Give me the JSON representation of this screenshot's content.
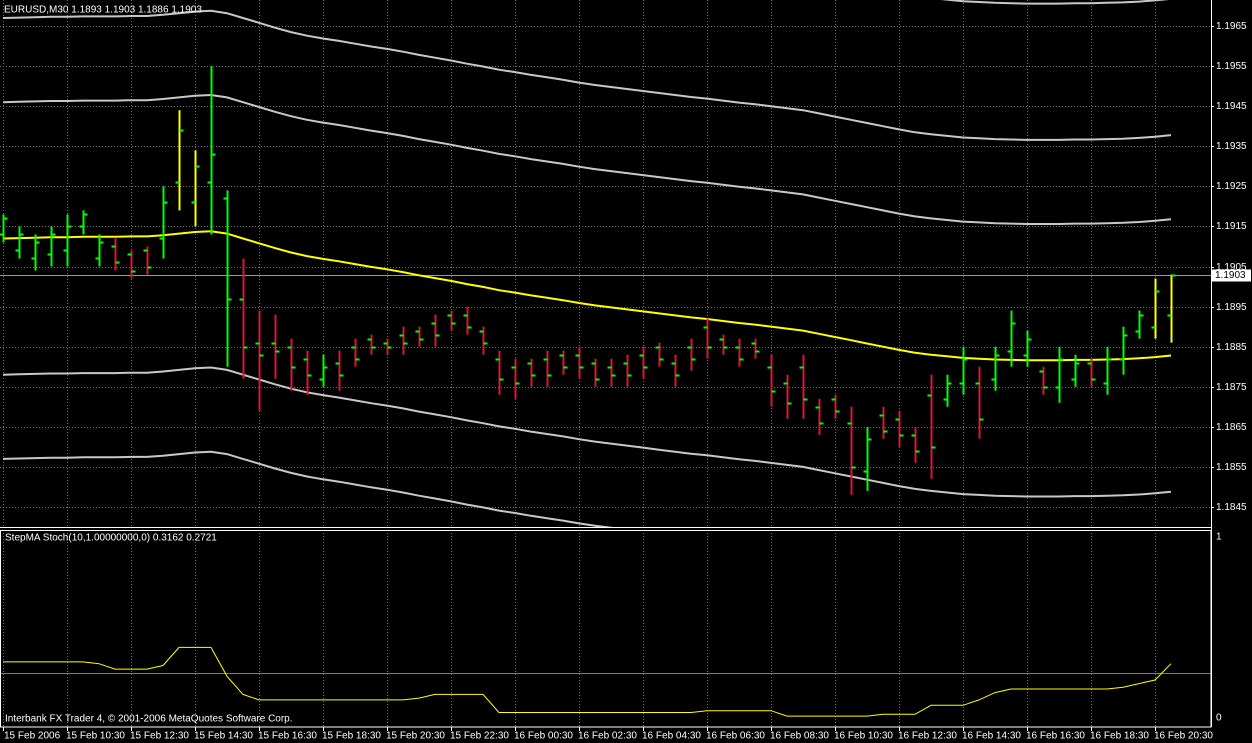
{
  "chart_data": [
    {
      "type": "ohlc",
      "title": "EURUSD,M30  1.1893 1.1903 1.1886 1.1903",
      "categories": [
        "15 Feb 2006",
        null,
        null,
        null,
        "15 Feb 10:30",
        null,
        null,
        null,
        "15 Feb 12:30",
        null,
        null,
        null,
        "15 Feb 14:30",
        null,
        null,
        null,
        "15 Feb 16:30",
        null,
        null,
        null,
        "15 Feb 18:30",
        null,
        null,
        null,
        "15 Feb 20:30",
        null,
        null,
        null,
        "15 Feb 22:30",
        null,
        null,
        null,
        "16 Feb 00:30",
        null,
        null,
        null,
        "16 Feb 02:30",
        null,
        null,
        null,
        "16 Feb 04:30",
        null,
        null,
        null,
        "16 Feb 06:30",
        null,
        null,
        null,
        "16 Feb 08:30",
        null,
        null,
        null,
        "16 Feb 10:30",
        null,
        null,
        null,
        "16 Feb 12:30",
        null,
        null,
        null,
        "16 Feb 14:30",
        null,
        null,
        null,
        "16 Feb 16:30",
        null,
        null,
        null,
        "16 Feb 18:30",
        null,
        null,
        null,
        "16 Feb 20:30",
        null
      ],
      "open": [
        1.1913,
        1.1909,
        1.1907,
        1.1908,
        1.1909,
        1.1915,
        1.1907,
        1.191,
        1.1908,
        1.1909,
        1.1912,
        1.1926,
        1.1921,
        1.1926,
        1.1922,
        1.1897,
        1.1886,
        1.1886,
        1.1885,
        1.1882,
        1.1877,
        1.1881,
        1.1885,
        1.1887,
        1.1886,
        1.1888,
        1.1889,
        1.1891,
        1.1893,
        1.1893,
        1.1889,
        1.1882,
        1.188,
        1.1881,
        1.1882,
        1.1883,
        1.1883,
        1.1881,
        1.188,
        1.1881,
        1.1883,
        1.1885,
        1.1881,
        1.1885,
        1.189,
        1.1887,
        1.1885,
        1.1886,
        1.188,
        1.1876,
        1.188,
        1.187,
        1.1872,
        1.1866,
        1.1854,
        1.1868,
        1.1867,
        1.1863,
        1.1873,
        1.1872,
        1.1876,
        1.1876,
        1.1877,
        1.1884,
        1.1883,
        1.1879,
        1.1875,
        1.1877,
        1.1881,
        1.1876,
        1.1882,
        1.1889,
        1.189,
        1.1893
      ],
      "high": [
        1.1918,
        1.1915,
        1.1913,
        1.1915,
        1.1918,
        1.1919,
        1.1913,
        1.1912,
        1.1909,
        1.191,
        1.1925,
        1.1944,
        1.1934,
        1.1955,
        1.1924,
        1.1907,
        1.1894,
        1.1893,
        1.1887,
        1.1884,
        1.1883,
        1.1884,
        1.1887,
        1.1888,
        1.1887,
        1.189,
        1.189,
        1.1893,
        1.1894,
        1.1895,
        1.189,
        1.1884,
        1.1882,
        1.1882,
        1.1884,
        1.1884,
        1.1885,
        1.1882,
        1.1882,
        1.1883,
        1.1885,
        1.1886,
        1.1883,
        1.1887,
        1.1892,
        1.1888,
        1.1887,
        1.1887,
        1.1883,
        1.1878,
        1.1883,
        1.1872,
        1.1873,
        1.187,
        1.1865,
        1.187,
        1.1869,
        1.1865,
        1.1878,
        1.1878,
        1.1885,
        1.188,
        1.1885,
        1.1894,
        1.1889,
        1.188,
        1.1885,
        1.1883,
        1.1882,
        1.1885,
        1.189,
        1.1894,
        1.1902,
        1.1903
      ],
      "low": [
        1.1911,
        1.1907,
        1.1904,
        1.1905,
        1.1905,
        1.1913,
        1.1905,
        1.1904,
        1.1902,
        1.1903,
        1.1907,
        1.1919,
        1.1915,
        1.1913,
        1.188,
        1.1877,
        1.1869,
        1.1877,
        1.1874,
        1.1873,
        1.1875,
        1.1874,
        1.188,
        1.1883,
        1.1883,
        1.1883,
        1.1885,
        1.1885,
        1.1889,
        1.1888,
        1.1883,
        1.1873,
        1.1872,
        1.1875,
        1.1875,
        1.1878,
        1.1877,
        1.1875,
        1.1875,
        1.1875,
        1.1877,
        1.188,
        1.1875,
        1.1879,
        1.1882,
        1.1883,
        1.188,
        1.1882,
        1.187,
        1.1867,
        1.1867,
        1.1863,
        1.1867,
        1.1848,
        1.1849,
        1.1862,
        1.186,
        1.1856,
        1.1852,
        1.187,
        1.1873,
        1.1862,
        1.1874,
        1.188,
        1.188,
        1.1873,
        1.1871,
        1.1875,
        1.1875,
        1.1873,
        1.1878,
        1.1887,
        1.1887,
        1.1886
      ],
      "close": [
        1.1917,
        1.1913,
        1.1911,
        1.1913,
        1.1915,
        1.1918,
        1.1911,
        1.1906,
        1.1904,
        1.1905,
        1.1921,
        1.1939,
        1.193,
        1.1933,
        1.1897,
        1.1885,
        1.1883,
        1.1884,
        1.188,
        1.1878,
        1.188,
        1.1878,
        1.1882,
        1.1885,
        1.1885,
        1.1886,
        1.1887,
        1.1888,
        1.1891,
        1.189,
        1.1886,
        1.1877,
        1.1876,
        1.1878,
        1.1878,
        1.188,
        1.188,
        1.1877,
        1.1878,
        1.1878,
        1.188,
        1.1882,
        1.1878,
        1.1882,
        1.1885,
        1.1885,
        1.1882,
        1.1884,
        1.1874,
        1.1871,
        1.1872,
        1.1866,
        1.1869,
        1.1855,
        1.1862,
        1.1864,
        1.1863,
        1.1859,
        1.186,
        1.1876,
        1.1882,
        1.1867,
        1.1883,
        1.1891,
        1.1887,
        1.1875,
        1.1882,
        1.1881,
        1.1877,
        1.1882,
        1.1888,
        1.1893,
        1.1899,
        1.1903
      ],
      "colors": [
        "lime",
        "lime",
        "lime",
        "lime",
        "lime",
        "lime",
        "lime",
        "crimson",
        "crimson",
        "crimson",
        "lime",
        "yellow",
        "yellow",
        "lime",
        "lime",
        "crimson",
        "crimson",
        "crimson",
        "crimson",
        "crimson",
        "lime",
        "crimson",
        "crimson",
        "crimson",
        "crimson",
        "crimson",
        "crimson",
        "crimson",
        "crimson",
        "crimson",
        "crimson",
        "crimson",
        "crimson",
        "crimson",
        "crimson",
        "crimson",
        "crimson",
        "crimson",
        "crimson",
        "crimson",
        "crimson",
        "crimson",
        "crimson",
        "crimson",
        "crimson",
        "crimson",
        "crimson",
        "crimson",
        "crimson",
        "crimson",
        "crimson",
        "crimson",
        "crimson",
        "crimson",
        "lime",
        "crimson",
        "crimson",
        "crimson",
        "crimson",
        "lime",
        "lime",
        "crimson",
        "lime",
        "lime",
        "lime",
        "crimson",
        "lime",
        "lime",
        "crimson",
        "lime",
        "lime",
        "lime",
        "yellow",
        "yellow"
      ],
      "tick_color": "lime",
      "series": [
        {
          "color": "#ffff00",
          "values": [
            1.1912,
            1.19121,
            1.19122,
            1.19123,
            1.19123,
            1.19124,
            1.19124,
            1.19124,
            1.19125,
            1.19125,
            1.19128,
            1.19132,
            1.19136,
            1.19138,
            1.19132,
            1.1912,
            1.19108,
            1.19096,
            1.19085,
            1.19076,
            1.19069,
            1.19063,
            1.19056,
            1.19049,
            1.19043,
            1.19036,
            1.19028,
            1.19021,
            1.19014,
            1.19006,
            1.18999,
            1.18991,
            1.18985,
            1.18978,
            1.18972,
            1.18966,
            1.18959,
            1.18953,
            1.18948,
            1.18943,
            1.18938,
            1.18933,
            1.18928,
            1.18923,
            1.18919,
            1.18914,
            1.18909,
            1.18905,
            1.189,
            1.18895,
            1.1889,
            1.18882,
            1.18874,
            1.18866,
            1.18858,
            1.1885,
            1.18842,
            1.18835,
            1.1883,
            1.18826,
            1.18822,
            1.1882,
            1.18818,
            1.18817,
            1.18816,
            1.18816,
            1.18816,
            1.18817,
            1.18817,
            1.18818,
            1.18819,
            1.18821,
            1.18824,
            1.18828
          ]
        }
      ],
      "envelope": {
        "color": "#c8c8c8",
        "offsets": [
          0.0034,
          0.0055,
          0.0089
        ]
      },
      "last_price": 1.1903,
      "ylim": [
        1.184,
        1.19715
      ],
      "yticks": [
        1.1845,
        1.1855,
        1.1865,
        1.1875,
        1.1885,
        1.1895,
        1.1905,
        1.1915,
        1.1925,
        1.1935,
        1.1945,
        1.1955,
        1.1965
      ],
      "grid": true,
      "grid_color": "#6e6e6e",
      "background": "#000000"
    },
    {
      "type": "line",
      "title": "StepMA Stoch(10,1.00000000,0) 0.3162 0.2721",
      "series": [
        {
          "color": "#ffff00",
          "values": [
            0.31,
            0.31,
            0.31,
            0.31,
            0.31,
            0.31,
            0.3,
            0.27,
            0.27,
            0.27,
            0.29,
            0.39,
            0.39,
            0.39,
            0.23,
            0.13,
            0.1,
            0.1,
            0.1,
            0.1,
            0.1,
            0.1,
            0.1,
            0.1,
            0.1,
            0.1,
            0.11,
            0.13,
            0.13,
            0.13,
            0.13,
            0.03,
            0.03,
            0.03,
            0.03,
            0.03,
            0.03,
            0.03,
            0.03,
            0.03,
            0.03,
            0.03,
            0.03,
            0.03,
            0.04,
            0.04,
            0.04,
            0.04,
            0.04,
            0.01,
            0.01,
            0.01,
            0.01,
            0.01,
            0.01,
            0.02,
            0.02,
            0.02,
            0.07,
            0.07,
            0.07,
            0.1,
            0.14,
            0.16,
            0.16,
            0.16,
            0.16,
            0.16,
            0.16,
            0.16,
            0.17,
            0.19,
            0.21,
            0.3
          ]
        }
      ],
      "levels": [
        0.25
      ],
      "level_color": "#1e90ff",
      "ylim": [
        -0.05,
        1.039
      ],
      "yticks": [
        0,
        1
      ]
    }
  ],
  "watermark": "Interbank FX Trader 4, © 2001-2006 MetaQuotes Software Corp."
}
